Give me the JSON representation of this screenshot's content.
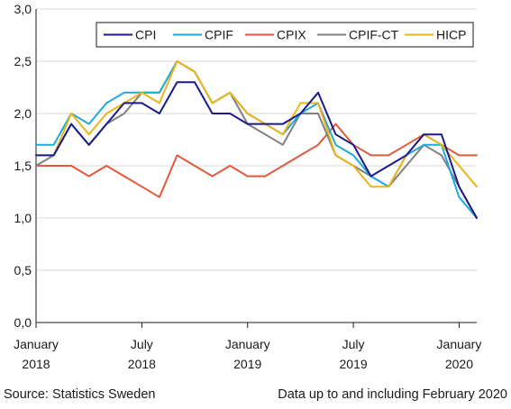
{
  "chart_data": {
    "type": "line",
    "title": "",
    "xlabel": "",
    "ylabel": "",
    "ylim": [
      0,
      3
    ],
    "yticks": [
      "0,0",
      "0,5",
      "1,0",
      "1,5",
      "2,0",
      "2,5",
      "3,0"
    ],
    "ytick_values": [
      0,
      0.5,
      1,
      1.5,
      2,
      2.5,
      3
    ],
    "x": [
      "2018-01",
      "2018-02",
      "2018-03",
      "2018-04",
      "2018-05",
      "2018-06",
      "2018-07",
      "2018-08",
      "2018-09",
      "2018-10",
      "2018-11",
      "2018-12",
      "2019-01",
      "2019-02",
      "2019-03",
      "2019-04",
      "2019-05",
      "2019-06",
      "2019-07",
      "2019-08",
      "2019-09",
      "2019-10",
      "2019-11",
      "2019-12",
      "2020-01",
      "2020-02"
    ],
    "xticks": [
      {
        "index": 0,
        "month": "January",
        "year": "2018"
      },
      {
        "index": 6,
        "month": "July",
        "year": "2018"
      },
      {
        "index": 12,
        "month": "January",
        "year": "2019"
      },
      {
        "index": 18,
        "month": "July",
        "year": "2019"
      },
      {
        "index": 24,
        "month": "January",
        "year": "2020"
      }
    ],
    "grid": "horizontal",
    "legend_position": "top-right",
    "series": [
      {
        "name": "CPI",
        "color": "#1a1a8c",
        "values": [
          1.6,
          1.6,
          1.9,
          1.7,
          1.9,
          2.1,
          2.1,
          2.0,
          2.3,
          2.3,
          2.0,
          2.0,
          1.9,
          1.9,
          1.9,
          2.0,
          2.2,
          1.8,
          1.7,
          1.4,
          1.5,
          1.6,
          1.8,
          1.8,
          1.3,
          1.0
        ]
      },
      {
        "name": "CPIF",
        "color": "#1eaadc",
        "values": [
          1.7,
          1.7,
          2.0,
          1.9,
          2.1,
          2.2,
          2.2,
          2.2,
          2.5,
          2.4,
          2.1,
          2.2,
          2.0,
          1.9,
          1.8,
          2.0,
          2.1,
          1.7,
          1.6,
          1.4,
          1.3,
          1.6,
          1.7,
          1.7,
          1.2,
          1.0
        ]
      },
      {
        "name": "CPIX",
        "color": "#e05a3c",
        "values": [
          1.5,
          1.5,
          1.5,
          1.4,
          1.5,
          1.4,
          1.3,
          1.2,
          1.6,
          1.5,
          1.4,
          1.5,
          1.4,
          1.4,
          1.5,
          1.6,
          1.7,
          1.9,
          1.7,
          1.6,
          1.6,
          1.7,
          1.8,
          1.7,
          1.6,
          1.6
        ]
      },
      {
        "name": "CPIF-CT",
        "color": "#808080",
        "values": [
          1.5,
          1.6,
          1.9,
          1.7,
          1.9,
          2.0,
          2.2,
          2.2,
          2.5,
          2.4,
          2.1,
          2.2,
          1.9,
          1.8,
          1.7,
          2.0,
          2.0,
          1.6,
          1.5,
          1.4,
          1.3,
          1.5,
          1.7,
          1.6,
          1.3,
          1.0
        ]
      },
      {
        "name": "HICP",
        "color": "#f0b414",
        "values": [
          1.6,
          1.6,
          2.0,
          1.8,
          2.0,
          2.1,
          2.2,
          2.1,
          2.5,
          2.4,
          2.1,
          2.2,
          2.0,
          1.9,
          1.8,
          2.1,
          2.1,
          1.6,
          1.5,
          1.3,
          1.3,
          1.6,
          1.8,
          1.7,
          1.5,
          1.3
        ]
      }
    ]
  },
  "footer": {
    "source": "Source: Statistics Sweden",
    "note": "Data up to and including February 2020"
  }
}
